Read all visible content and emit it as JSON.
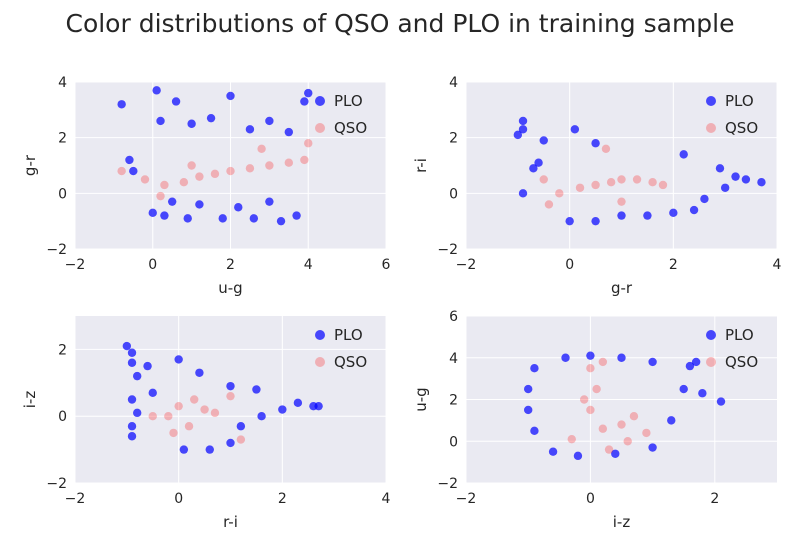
{
  "figure": {
    "title": "Color distributions of QSO and PLO in training sample"
  },
  "colors": {
    "PLO": "#0000ff",
    "QSO": "#ff0000",
    "background": "#eaeaf2"
  },
  "chart_data": [
    {
      "type": "scatter",
      "xlabel": "u-g",
      "ylabel": "g-r",
      "xlim": [
        -2,
        6
      ],
      "ylim": [
        -2,
        4
      ],
      "xticks": [
        -2,
        0,
        2,
        4,
        6
      ],
      "yticks": [
        -2,
        0,
        2,
        4
      ],
      "grid": true,
      "legend": "top-right",
      "series": [
        {
          "name": "PLO",
          "color": "#0000ff",
          "alpha": 0.7,
          "points": [
            [
              -0.8,
              3.2
            ],
            [
              0.1,
              3.7
            ],
            [
              0.6,
              3.3
            ],
            [
              2.0,
              3.5
            ],
            [
              3.0,
              2.6
            ],
            [
              3.9,
              3.3
            ],
            [
              4.0,
              3.6
            ],
            [
              0.0,
              -0.7
            ],
            [
              0.3,
              -0.8
            ],
            [
              0.9,
              -0.9
            ],
            [
              1.8,
              -0.9
            ],
            [
              2.6,
              -0.9
            ],
            [
              3.3,
              -1.0
            ],
            [
              3.7,
              -0.8
            ],
            [
              -0.6,
              1.2
            ],
            [
              0.2,
              2.6
            ],
            [
              1.0,
              2.5
            ],
            [
              1.5,
              2.7
            ],
            [
              2.5,
              2.3
            ],
            [
              3.5,
              2.2
            ],
            [
              -0.5,
              0.8
            ],
            [
              0.5,
              -0.3
            ],
            [
              1.2,
              -0.4
            ],
            [
              2.2,
              -0.5
            ],
            [
              3.0,
              -0.3
            ]
          ]
        },
        {
          "name": "QSO",
          "color": "#ff0000",
          "alpha": 0.25,
          "points": [
            [
              -0.8,
              0.8
            ],
            [
              -0.2,
              0.5
            ],
            [
              0.3,
              0.3
            ],
            [
              0.8,
              0.4
            ],
            [
              1.2,
              0.6
            ],
            [
              1.6,
              0.7
            ],
            [
              2.0,
              0.8
            ],
            [
              2.5,
              0.9
            ],
            [
              3.0,
              1.0
            ],
            [
              3.5,
              1.1
            ],
            [
              3.9,
              1.2
            ],
            [
              4.0,
              1.8
            ],
            [
              2.8,
              1.6
            ],
            [
              1.0,
              1.0
            ],
            [
              0.2,
              -0.1
            ]
          ]
        }
      ]
    },
    {
      "type": "scatter",
      "xlabel": "g-r",
      "ylabel": "r-i",
      "xlim": [
        -2,
        4
      ],
      "ylim": [
        -2,
        4
      ],
      "xticks": [
        -2,
        0,
        2,
        4
      ],
      "yticks": [
        -2,
        0,
        2,
        4
      ],
      "grid": true,
      "legend": "top-right",
      "series": [
        {
          "name": "PLO",
          "color": "#0000ff",
          "alpha": 0.7,
          "points": [
            [
              -0.9,
              2.6
            ],
            [
              -0.9,
              2.3
            ],
            [
              -1.0,
              2.1
            ],
            [
              -0.5,
              1.9
            ],
            [
              0.1,
              2.3
            ],
            [
              0.5,
              1.8
            ],
            [
              -0.6,
              1.1
            ],
            [
              -0.7,
              0.9
            ],
            [
              2.2,
              1.4
            ],
            [
              2.9,
              0.9
            ],
            [
              3.2,
              0.6
            ],
            [
              3.7,
              0.4
            ],
            [
              3.0,
              0.2
            ],
            [
              -0.9,
              0.0
            ],
            [
              0.0,
              -1.0
            ],
            [
              0.5,
              -1.0
            ],
            [
              1.0,
              -0.8
            ],
            [
              1.5,
              -0.8
            ],
            [
              2.0,
              -0.7
            ],
            [
              2.4,
              -0.6
            ],
            [
              2.6,
              -0.2
            ],
            [
              3.4,
              0.5
            ]
          ]
        },
        {
          "name": "QSO",
          "color": "#ff0000",
          "alpha": 0.25,
          "points": [
            [
              -0.2,
              0.0
            ],
            [
              0.2,
              0.2
            ],
            [
              0.5,
              0.3
            ],
            [
              0.8,
              0.4
            ],
            [
              1.0,
              0.5
            ],
            [
              1.3,
              0.5
            ],
            [
              1.6,
              0.4
            ],
            [
              1.8,
              0.3
            ],
            [
              0.7,
              1.6
            ],
            [
              -0.5,
              0.5
            ],
            [
              -0.4,
              -0.4
            ],
            [
              1.0,
              -0.3
            ]
          ]
        }
      ]
    },
    {
      "type": "scatter",
      "xlabel": "r-i",
      "ylabel": "i-z",
      "xlim": [
        -2,
        4
      ],
      "ylim": [
        -2,
        3
      ],
      "xticks": [
        -2,
        0,
        2,
        4
      ],
      "yticks": [
        -2,
        0,
        2
      ],
      "grid": true,
      "legend": "top-right",
      "series": [
        {
          "name": "PLO",
          "color": "#0000ff",
          "alpha": 0.7,
          "points": [
            [
              -1.0,
              2.1
            ],
            [
              -0.9,
              1.9
            ],
            [
              -0.9,
              1.6
            ],
            [
              -0.6,
              1.5
            ],
            [
              -0.8,
              1.2
            ],
            [
              0.0,
              1.7
            ],
            [
              0.4,
              1.3
            ],
            [
              -0.9,
              0.5
            ],
            [
              -0.8,
              0.1
            ],
            [
              -0.9,
              -0.3
            ],
            [
              -0.9,
              -0.6
            ],
            [
              0.1,
              -1.0
            ],
            [
              0.6,
              -1.0
            ],
            [
              1.0,
              -0.8
            ],
            [
              1.2,
              -0.3
            ],
            [
              1.6,
              0.0
            ],
            [
              2.0,
              0.2
            ],
            [
              2.3,
              0.4
            ],
            [
              2.6,
              0.3
            ],
            [
              2.7,
              0.3
            ],
            [
              1.5,
              0.8
            ],
            [
              1.0,
              0.9
            ],
            [
              -0.5,
              0.7
            ]
          ]
        },
        {
          "name": "QSO",
          "color": "#ff0000",
          "alpha": 0.25,
          "points": [
            [
              -0.2,
              0.0
            ],
            [
              0.0,
              0.3
            ],
            [
              0.3,
              0.5
            ],
            [
              0.5,
              0.2
            ],
            [
              0.7,
              0.1
            ],
            [
              0.2,
              -0.3
            ],
            [
              -0.1,
              -0.5
            ],
            [
              1.0,
              0.6
            ],
            [
              1.2,
              -0.7
            ],
            [
              -0.5,
              0.0
            ]
          ]
        }
      ]
    },
    {
      "type": "scatter",
      "xlabel": "i-z",
      "ylabel": "u-g",
      "xlim": [
        -2,
        3
      ],
      "ylim": [
        -2,
        6
      ],
      "xticks": [
        -2,
        0,
        2
      ],
      "yticks": [
        -2,
        0,
        2,
        4,
        6
      ],
      "grid": true,
      "legend": "top-right",
      "series": [
        {
          "name": "PLO",
          "color": "#0000ff",
          "alpha": 0.7,
          "points": [
            [
              -0.4,
              4.0
            ],
            [
              0.0,
              4.1
            ],
            [
              0.5,
              4.0
            ],
            [
              1.0,
              3.8
            ],
            [
              1.6,
              3.6
            ],
            [
              -0.9,
              3.5
            ],
            [
              -1.0,
              2.5
            ],
            [
              -1.0,
              1.5
            ],
            [
              -0.9,
              0.5
            ],
            [
              -0.6,
              -0.5
            ],
            [
              -0.2,
              -0.7
            ],
            [
              0.4,
              -0.6
            ],
            [
              1.0,
              -0.3
            ],
            [
              1.3,
              1.0
            ],
            [
              1.5,
              2.5
            ],
            [
              1.8,
              2.3
            ],
            [
              2.1,
              1.9
            ],
            [
              1.7,
              3.8
            ]
          ]
        },
        {
          "name": "QSO",
          "color": "#ff0000",
          "alpha": 0.25,
          "points": [
            [
              0.0,
              3.5
            ],
            [
              0.1,
              2.5
            ],
            [
              0.0,
              1.5
            ],
            [
              0.2,
              0.6
            ],
            [
              0.5,
              0.8
            ],
            [
              0.7,
              1.2
            ],
            [
              0.9,
              0.4
            ],
            [
              -0.3,
              0.1
            ],
            [
              0.3,
              -0.4
            ],
            [
              0.6,
              0.0
            ],
            [
              0.2,
              3.8
            ],
            [
              -0.1,
              2.0
            ]
          ]
        }
      ]
    }
  ]
}
